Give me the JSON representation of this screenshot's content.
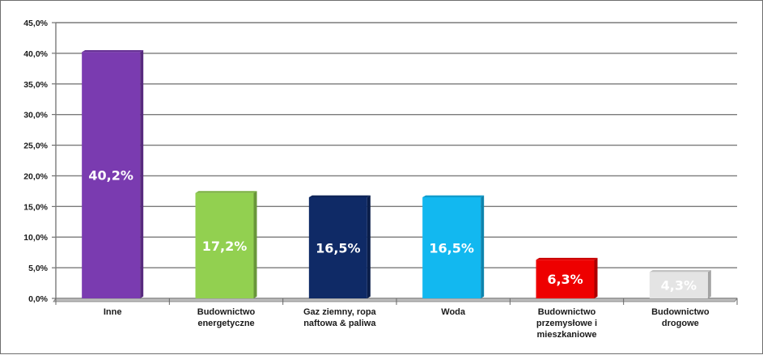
{
  "chart_data": {
    "type": "bar",
    "categories": [
      [
        "Inne"
      ],
      [
        "Budownictwo",
        "energetyczne"
      ],
      [
        "Gaz ziemny, ropa",
        "naftowa & paliwa"
      ],
      [
        "Woda"
      ],
      [
        "Budownictwo",
        "przemysłowe i",
        "mieszkaniowe"
      ],
      [
        "Budownictwo",
        "drogowe"
      ]
    ],
    "values": [
      40.2,
      17.2,
      16.5,
      16.5,
      6.3,
      4.3
    ],
    "data_labels": [
      "40,2%",
      "17,2%",
      "16,5%",
      "16,5%",
      "6,3%",
      "4,3%"
    ],
    "bar_colors": [
      "#7a3bb0",
      "#92d050",
      "#0f2a66",
      "#12b8f0",
      "#ee0000",
      "#e4e4e4"
    ],
    "ylim": [
      0,
      45
    ],
    "y_ticks": [
      0,
      5,
      10,
      15,
      20,
      25,
      30,
      35,
      40,
      45
    ],
    "y_tick_labels": [
      "0,0%",
      "5,0%",
      "10,0%",
      "15,0%",
      "20,0%",
      "25,0%",
      "30,0%",
      "35,0%",
      "40,0%",
      "45,0%"
    ],
    "grid": true,
    "title": "",
    "xlabel": "",
    "ylabel": ""
  }
}
